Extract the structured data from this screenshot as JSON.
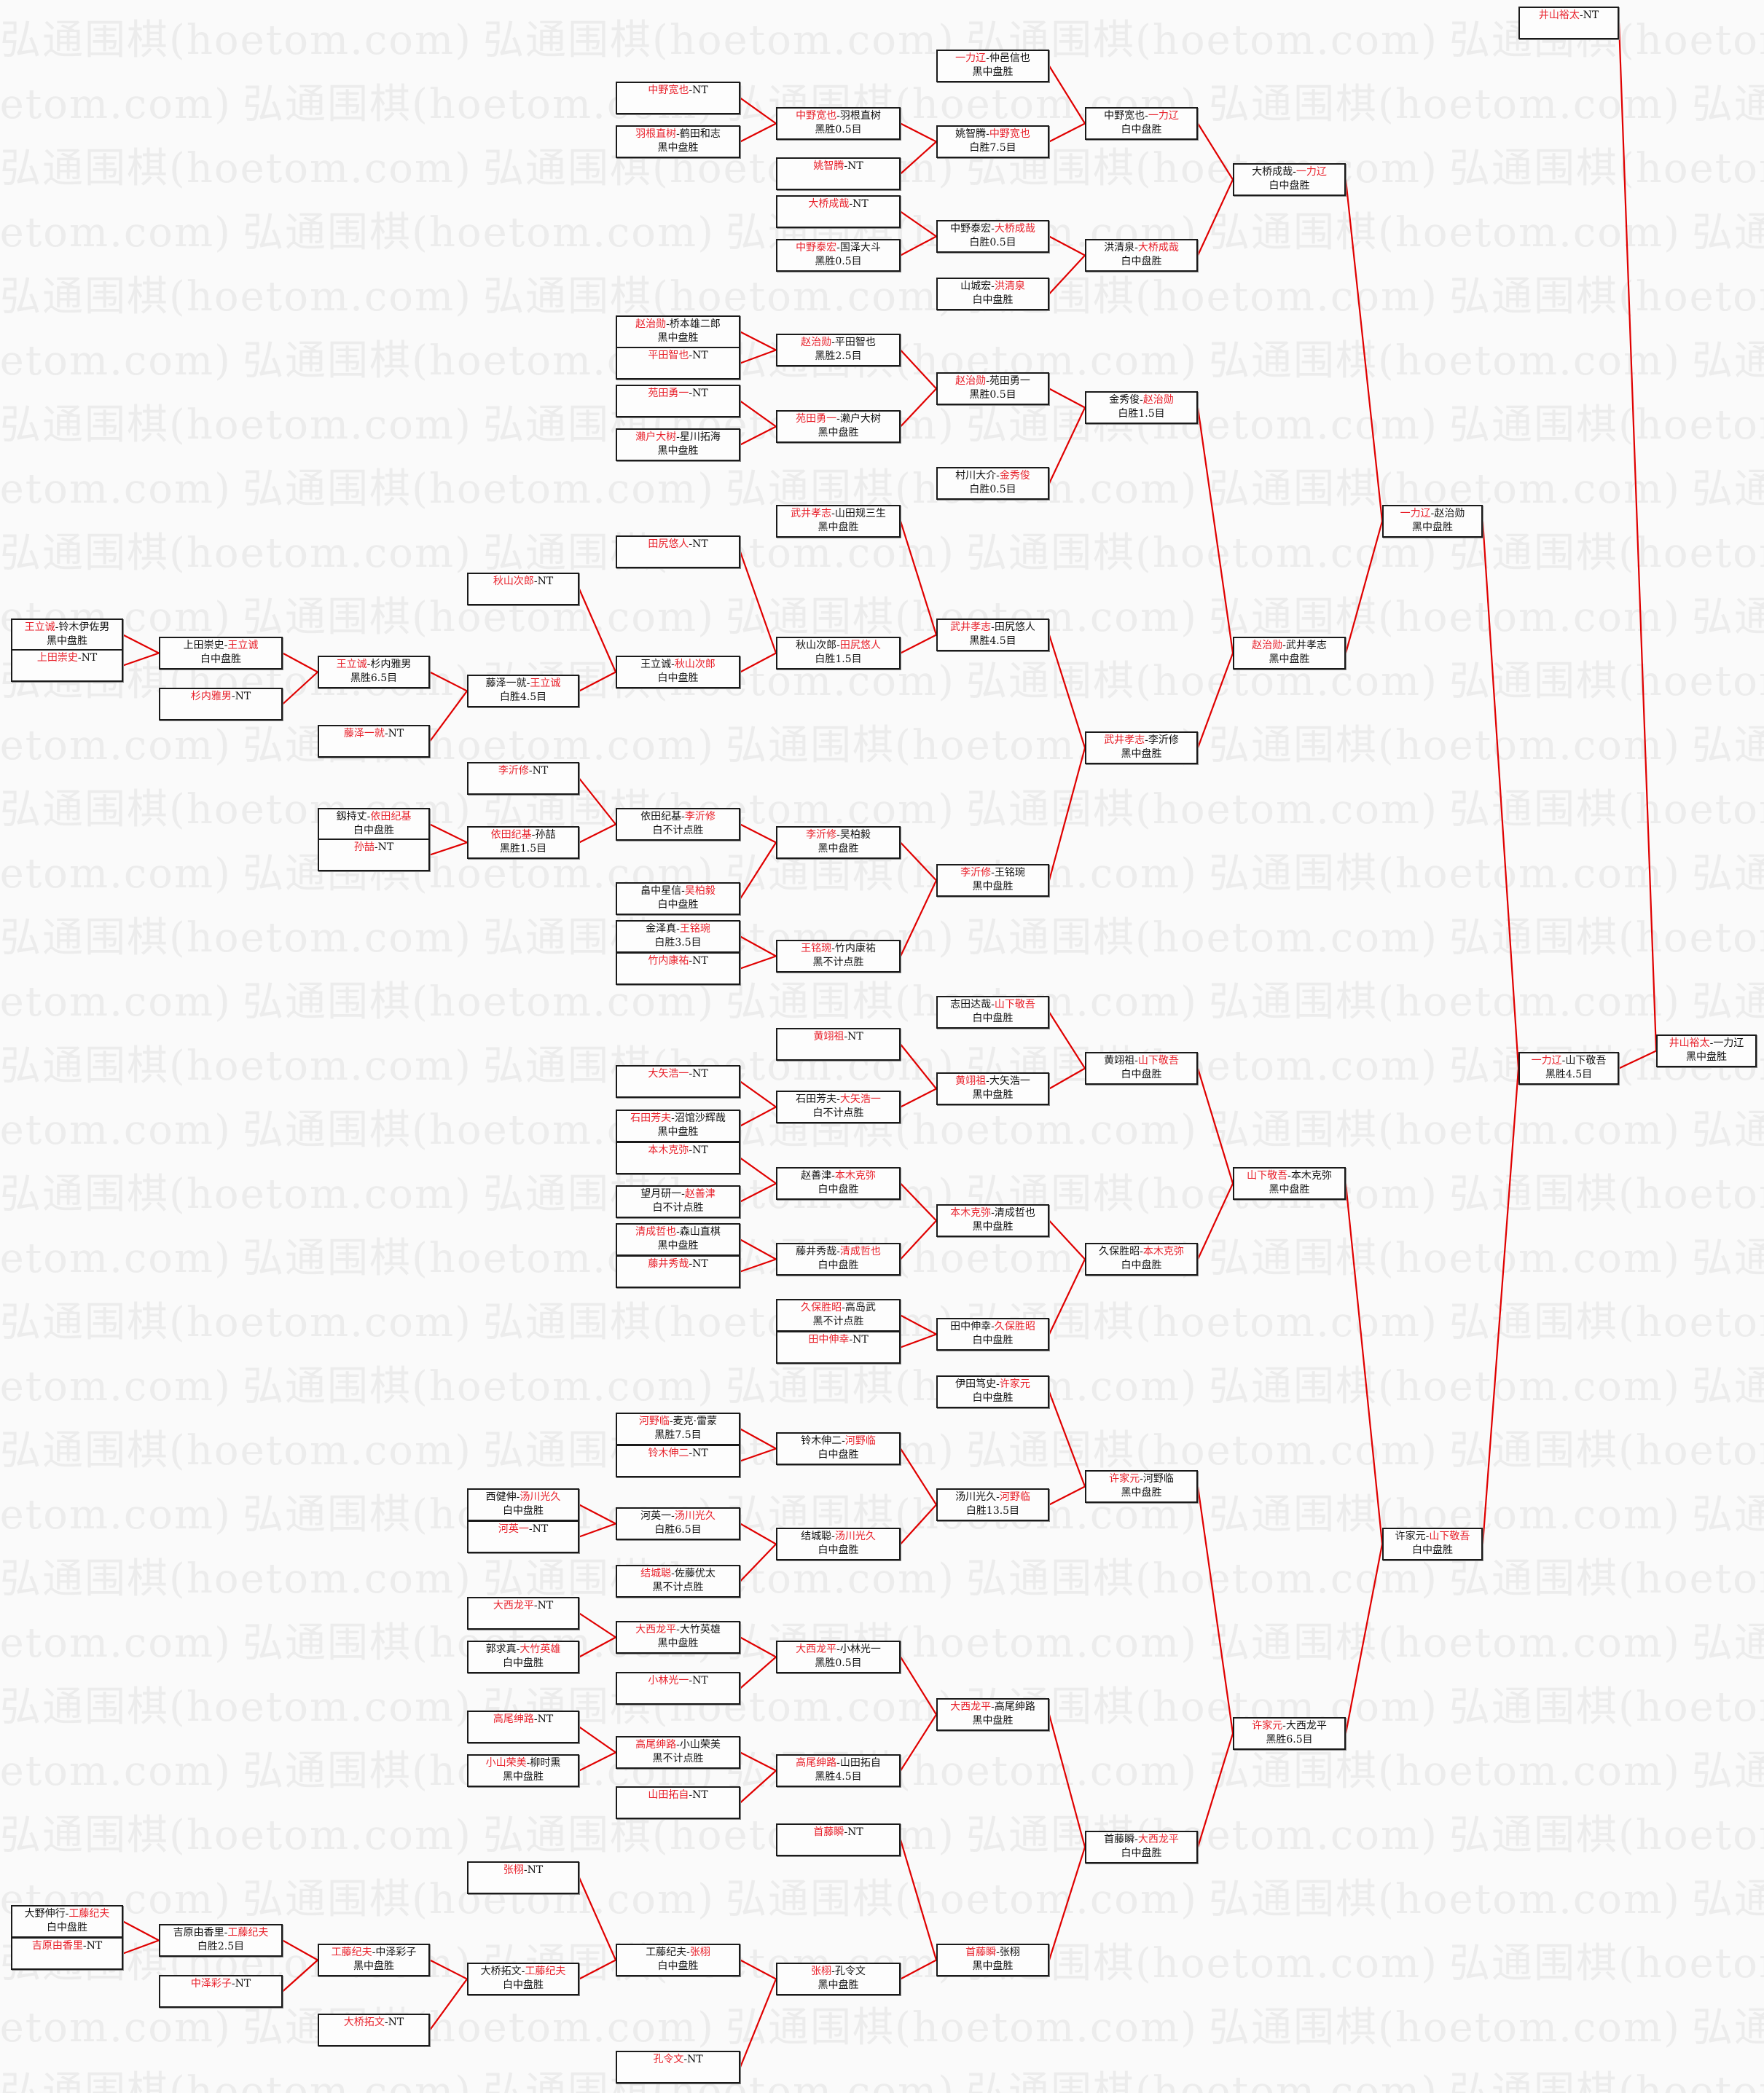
{
  "watermark": "弘通围棋(hoetom.com)",
  "colors": {
    "winner": "#e8202a",
    "connector": "#e00000",
    "box_border": "#1a1a1a"
  },
  "boxes": [
    {
      "id": "F",
      "a": "井山裕太",
      "b": "一力辽",
      "w": 0,
      "r": "黑中盘胜",
      "to": null
    },
    {
      "id": "N1",
      "a": "井山裕太",
      "b": "NT",
      "w": 0,
      "r": "",
      "to": "F"
    },
    {
      "id": "SF",
      "a": "一力辽",
      "b": "山下敬吾",
      "w": 0,
      "r": "黑胜4.5目",
      "to": "F"
    },
    {
      "id": "Q1",
      "a": "一力辽",
      "b": "赵治勋",
      "w": 0,
      "r": "黑中盘胜",
      "to": "SF"
    },
    {
      "id": "Q2",
      "a": "许家元",
      "b": "山下敬吾",
      "w": 1,
      "r": "白中盘胜",
      "to": "SF"
    },
    {
      "id": "R1",
      "a": "大桥成哉",
      "b": "一力辽",
      "w": 1,
      "r": "白中盘胜",
      "to": "Q1"
    },
    {
      "id": "R2",
      "a": "赵治勋",
      "b": "武井孝志",
      "w": 0,
      "r": "黑中盘胜",
      "to": "Q1"
    },
    {
      "id": "R3",
      "a": "山下敬吾",
      "b": "本木克弥",
      "w": 0,
      "r": "黑中盘胜",
      "to": "Q2"
    },
    {
      "id": "R4",
      "a": "许家元",
      "b": "大西龙平",
      "w": 0,
      "r": "黑胜6.5目",
      "to": "Q2"
    },
    {
      "id": "S1",
      "a": "中野宽也",
      "b": "一力辽",
      "w": 1,
      "r": "白中盘胜",
      "to": "R1"
    },
    {
      "id": "S2",
      "a": "洪清泉",
      "b": "大桥成哉",
      "w": 1,
      "r": "白中盘胜",
      "to": "R1"
    },
    {
      "id": "S3",
      "a": "金秀俊",
      "b": "赵治勋",
      "w": 1,
      "r": "白胜1.5目",
      "to": "R2"
    },
    {
      "id": "S4",
      "a": "武井孝志",
      "b": "李沂修",
      "w": 0,
      "r": "黑中盘胜",
      "to": "R2"
    },
    {
      "id": "S5",
      "a": "黄翊祖",
      "b": "山下敬吾",
      "w": 1,
      "r": "白中盘胜",
      "to": "R3"
    },
    {
      "id": "S6",
      "a": "久保胜昭",
      "b": "本木克弥",
      "w": 1,
      "r": "白中盘胜",
      "to": "R3"
    },
    {
      "id": "S7",
      "a": "许家元",
      "b": "河野临",
      "w": 0,
      "r": "黑中盘胜",
      "to": "R4"
    },
    {
      "id": "S8",
      "a": "首藤瞬",
      "b": "大西龙平",
      "w": 1,
      "r": "白中盘胜",
      "to": "R4"
    },
    {
      "id": "T1",
      "a": "一力辽",
      "b": "仲邑信也",
      "w": 0,
      "r": "黑中盘胜",
      "to": "S1"
    },
    {
      "id": "T2",
      "a": "姚智腾",
      "b": "中野宽也",
      "w": 1,
      "r": "白胜7.5目",
      "to": "S1"
    },
    {
      "id": "T3",
      "a": "中野泰宏",
      "b": "大桥成哉",
      "w": 1,
      "r": "白胜0.5目",
      "to": "S2"
    },
    {
      "id": "T4",
      "a": "山城宏",
      "b": "洪清泉",
      "w": 1,
      "r": "白中盘胜",
      "to": "S2"
    },
    {
      "id": "T5",
      "a": "赵治勋",
      "b": "苑田勇一",
      "w": 0,
      "r": "黑胜0.5目",
      "to": "S3"
    },
    {
      "id": "T6",
      "a": "村川大介",
      "b": "金秀俊",
      "w": 1,
      "r": "白胜0.5目",
      "to": "S3"
    },
    {
      "id": "T7",
      "a": "武井孝志",
      "b": "田尻悠人",
      "w": 0,
      "r": "黑胜4.5目",
      "to": "S4"
    },
    {
      "id": "T8",
      "a": "李沂修",
      "b": "王铭琬",
      "w": 0,
      "r": "黑中盘胜",
      "to": "S4"
    },
    {
      "id": "T9",
      "a": "志田达哉",
      "b": "山下敬吾",
      "w": 1,
      "r": "白中盘胜",
      "to": "S5"
    },
    {
      "id": "T10",
      "a": "黄翊祖",
      "b": "大矢浩一",
      "w": 0,
      "r": "黑中盘胜",
      "to": "S5"
    },
    {
      "id": "T11",
      "a": "本木克弥",
      "b": "清成哲也",
      "w": 0,
      "r": "黑中盘胜",
      "to": "S6"
    },
    {
      "id": "T12",
      "a": "田中伸幸",
      "b": "久保胜昭",
      "w": 1,
      "r": "白中盘胜",
      "to": "S6"
    },
    {
      "id": "T13",
      "a": "伊田笃史",
      "b": "许家元",
      "w": 1,
      "r": "白中盘胜",
      "to": "S7"
    },
    {
      "id": "T14",
      "a": "汤川光久",
      "b": "河野临",
      "w": 1,
      "r": "白胜13.5目",
      "to": "S7"
    },
    {
      "id": "T15",
      "a": "大西龙平",
      "b": "高尾绅路",
      "w": 0,
      "r": "黑中盘胜",
      "to": "S8"
    },
    {
      "id": "T16",
      "a": "首藤瞬",
      "b": "张栩",
      "w": 0,
      "r": "黑中盘胜",
      "to": "S8"
    },
    {
      "id": "U1",
      "a": "中野宽也",
      "b": "羽根直树",
      "w": 0,
      "r": "黑胜0.5目",
      "to": "T2"
    },
    {
      "id": "U2",
      "a": "姚智腾",
      "b": "NT",
      "w": 0,
      "r": "",
      "to": "T2"
    },
    {
      "id": "U3",
      "a": "大桥成哉",
      "b": "NT",
      "w": 0,
      "r": "",
      "to": "T3"
    },
    {
      "id": "U4",
      "a": "中野泰宏",
      "b": "国泽大斗",
      "w": 0,
      "r": "黑胜0.5目",
      "to": "T3"
    },
    {
      "id": "U5",
      "a": "赵治勋",
      "b": "平田智也",
      "w": 0,
      "r": "黑胜2.5目",
      "to": "T5"
    },
    {
      "id": "U6",
      "a": "苑田勇一",
      "b": "濑户大树",
      "w": 0,
      "r": "黑中盘胜",
      "to": "T5"
    },
    {
      "id": "U7",
      "a": "武井孝志",
      "b": "山田规三生",
      "w": 0,
      "r": "黑中盘胜",
      "to": "T7"
    },
    {
      "id": "U8",
      "a": "秋山次郎",
      "b": "田尻悠人",
      "w": 1,
      "r": "白胜1.5目",
      "to": "T7"
    },
    {
      "id": "U9",
      "a": "李沂修",
      "b": "吴柏毅",
      "w": 0,
      "r": "黑中盘胜",
      "to": "T8"
    },
    {
      "id": "U10",
      "a": "王铭琬",
      "b": "竹内康祐",
      "w": 0,
      "r": "黑不计点胜",
      "to": "T8"
    },
    {
      "id": "U11",
      "a": "黄翊祖",
      "b": "NT",
      "w": 0,
      "r": "",
      "to": "T10"
    },
    {
      "id": "U12",
      "a": "石田芳夫",
      "b": "大矢浩一",
      "w": 1,
      "r": "白不计点胜",
      "to": "T10"
    },
    {
      "id": "U13",
      "a": "赵善津",
      "b": "本木克弥",
      "w": 1,
      "r": "白中盘胜",
      "to": "T11"
    },
    {
      "id": "U14",
      "a": "藤井秀哉",
      "b": "清成哲也",
      "w": 1,
      "r": "白中盘胜",
      "to": "T11"
    },
    {
      "id": "U15",
      "a": "久保胜昭",
      "b": "高岛武",
      "w": 0,
      "r": "黑不计点胜",
      "to": "T12"
    },
    {
      "id": "U16",
      "a": "田中伸幸",
      "b": "NT",
      "w": 0,
      "r": "",
      "to": "T12"
    },
    {
      "id": "U17",
      "a": "铃木伸二",
      "b": "河野临",
      "w": 1,
      "r": "白中盘胜",
      "to": "T14"
    },
    {
      "id": "U18",
      "a": "结城聪",
      "b": "汤川光久",
      "w": 1,
      "r": "白中盘胜",
      "to": "T14"
    },
    {
      "id": "U19",
      "a": "大西龙平",
      "b": "小林光一",
      "w": 0,
      "r": "黑胜0.5目",
      "to": "T15"
    },
    {
      "id": "U20",
      "a": "高尾绅路",
      "b": "山田拓自",
      "w": 0,
      "r": "黑胜4.5目",
      "to": "T15"
    },
    {
      "id": "U21",
      "a": "首藤瞬",
      "b": "NT",
      "w": 0,
      "r": "",
      "to": "T16"
    },
    {
      "id": "U22",
      "a": "张栩",
      "b": "孔令文",
      "w": 0,
      "r": "黑中盘胜",
      "to": "T16"
    },
    {
      "id": "V1",
      "a": "中野宽也",
      "b": "NT",
      "w": 0,
      "r": "",
      "to": "U1"
    },
    {
      "id": "V2",
      "a": "羽根直树",
      "b": "鹤田和志",
      "w": 0,
      "r": "黑中盘胜",
      "to": "U1"
    },
    {
      "id": "V3",
      "a": "赵治勋",
      "b": "桥本雄二郎",
      "w": 0,
      "r": "黑中盘胜",
      "to": "U5"
    },
    {
      "id": "V4",
      "a": "平田智也",
      "b": "NT",
      "w": 0,
      "r": "",
      "to": "U5"
    },
    {
      "id": "V5",
      "a": "苑田勇一",
      "b": "NT",
      "w": 0,
      "r": "",
      "to": "U6"
    },
    {
      "id": "V6",
      "a": "濑户大树",
      "b": "星川拓海",
      "w": 0,
      "r": "黑中盘胜",
      "to": "U6"
    },
    {
      "id": "V7",
      "a": "田尻悠人",
      "b": "NT",
      "w": 0,
      "r": "",
      "to": "U8"
    },
    {
      "id": "V8",
      "a": "王立诚",
      "b": "秋山次郎",
      "w": 1,
      "r": "白中盘胜",
      "to": "U8"
    },
    {
      "id": "V9",
      "a": "依田纪基",
      "b": "李沂修",
      "w": 1,
      "r": "白不计点胜",
      "to": "U9"
    },
    {
      "id": "V10",
      "a": "畠中星信",
      "b": "吴柏毅",
      "w": 1,
      "r": "白中盘胜",
      "to": "U9"
    },
    {
      "id": "V11",
      "a": "金泽真",
      "b": "王铭琬",
      "w": 1,
      "r": "白胜3.5目",
      "to": "U10"
    },
    {
      "id": "V12",
      "a": "竹内康祐",
      "b": "NT",
      "w": 0,
      "r": "",
      "to": "U10"
    },
    {
      "id": "V13",
      "a": "大矢浩一",
      "b": "NT",
      "w": 0,
      "r": "",
      "to": "U12"
    },
    {
      "id": "V14",
      "a": "石田芳夫",
      "b": "沼馆沙辉哉",
      "w": 0,
      "r": "黑中盘胜",
      "to": "U12"
    },
    {
      "id": "V15",
      "a": "本木克弥",
      "b": "NT",
      "w": 0,
      "r": "",
      "to": "U13"
    },
    {
      "id": "V16",
      "a": "望月研一",
      "b": "赵善津",
      "w": 1,
      "r": "白不计点胜",
      "to": "U13"
    },
    {
      "id": "V17",
      "a": "清成哲也",
      "b": "森山直棋",
      "w": 0,
      "r": "黑中盘胜",
      "to": "U14"
    },
    {
      "id": "V18",
      "a": "藤井秀哉",
      "b": "NT",
      "w": 0,
      "r": "",
      "to": "U14"
    },
    {
      "id": "V19",
      "a": "河野临",
      "b": "麦克·雷蒙",
      "w": 0,
      "r": "黑胜7.5目",
      "to": "U17"
    },
    {
      "id": "V20",
      "a": "铃木伸二",
      "b": "NT",
      "w": 0,
      "r": "",
      "to": "U17"
    },
    {
      "id": "V21",
      "a": "河英一",
      "b": "汤川光久",
      "w": 1,
      "r": "白胜6.5目",
      "to": "U18"
    },
    {
      "id": "V22",
      "a": "结城聪",
      "b": "佐藤优太",
      "w": 0,
      "r": "黑不计点胜",
      "to": "U18"
    },
    {
      "id": "V23",
      "a": "大西龙平",
      "b": "大竹英雄",
      "w": 0,
      "r": "黑中盘胜",
      "to": "U19"
    },
    {
      "id": "V24",
      "a": "小林光一",
      "b": "NT",
      "w": 0,
      "r": "",
      "to": "U19"
    },
    {
      "id": "V25",
      "a": "高尾绅路",
      "b": "小山荣美",
      "w": 0,
      "r": "黑不计点胜",
      "to": "U20"
    },
    {
      "id": "V26",
      "a": "山田拓自",
      "b": "NT",
      "w": 0,
      "r": "",
      "to": "U20"
    },
    {
      "id": "V27",
      "a": "工藤纪夫",
      "b": "张栩",
      "w": 1,
      "r": "白中盘胜",
      "to": "U22"
    },
    {
      "id": "V28",
      "a": "孔令文",
      "b": "NT",
      "w": 0,
      "r": "",
      "to": "U22"
    },
    {
      "id": "W1",
      "a": "秋山次郎",
      "b": "NT",
      "w": 0,
      "r": "",
      "to": "V8"
    },
    {
      "id": "W2",
      "a": "藤泽一就",
      "b": "王立诚",
      "w": 1,
      "r": "白胜4.5目",
      "to": "V8"
    },
    {
      "id": "W3",
      "a": "李沂修",
      "b": "NT",
      "w": 0,
      "r": "",
      "to": "V9"
    },
    {
      "id": "W4",
      "a": "依田纪基",
      "b": "孙喆",
      "w": 0,
      "r": "黑胜1.5目",
      "to": "V9"
    },
    {
      "id": "W5",
      "a": "西健伸",
      "b": "汤川光久",
      "w": 1,
      "r": "白中盘胜",
      "to": "V21"
    },
    {
      "id": "W6",
      "a": "河英一",
      "b": "NT",
      "w": 0,
      "r": "",
      "to": "V21"
    },
    {
      "id": "W7",
      "a": "大西龙平",
      "b": "NT",
      "w": 0,
      "r": "",
      "to": "V23"
    },
    {
      "id": "W8",
      "a": "郭求真",
      "b": "大竹英雄",
      "w": 1,
      "r": "白中盘胜",
      "to": "V23"
    },
    {
      "id": "W9",
      "a": "高尾绅路",
      "b": "NT",
      "w": 0,
      "r": "",
      "to": "V25"
    },
    {
      "id": "W10",
      "a": "小山荣美",
      "b": "柳时熏",
      "w": 0,
      "r": "黑中盘胜",
      "to": "V25"
    },
    {
      "id": "W11",
      "a": "张栩",
      "b": "NT",
      "w": 0,
      "r": "",
      "to": "V27"
    },
    {
      "id": "W12",
      "a": "大桥拓文",
      "b": "工藤纪夫",
      "w": 1,
      "r": "白中盘胜",
      "to": "V27"
    },
    {
      "id": "X1",
      "a": "王立诚",
      "b": "杉内雅男",
      "w": 0,
      "r": "黑胜6.5目",
      "to": "W2"
    },
    {
      "id": "X2",
      "a": "藤泽一就",
      "b": "NT",
      "w": 0,
      "r": "",
      "to": "W2"
    },
    {
      "id": "X3",
      "a": "釼持丈",
      "b": "依田纪基",
      "w": 1,
      "r": "白中盘胜",
      "to": "W4"
    },
    {
      "id": "X4",
      "a": "孙喆",
      "b": "NT",
      "w": 0,
      "r": "",
      "to": "W4"
    },
    {
      "id": "X5",
      "a": "工藤纪夫",
      "b": "中泽彩子",
      "w": 0,
      "r": "黑中盘胜",
      "to": "W12"
    },
    {
      "id": "X6",
      "a": "大桥拓文",
      "b": "NT",
      "w": 0,
      "r": "",
      "to": "W12"
    },
    {
      "id": "Y1",
      "a": "上田崇史",
      "b": "王立诚",
      "w": 1,
      "r": "白中盘胜",
      "to": "X1"
    },
    {
      "id": "Y2",
      "a": "杉内雅男",
      "b": "NT",
      "w": 0,
      "r": "",
      "to": "X1"
    },
    {
      "id": "Y3",
      "a": "吉原由香里",
      "b": "工藤纪夫",
      "w": 1,
      "r": "白胜2.5目",
      "to": "X5"
    },
    {
      "id": "Y4",
      "a": "中泽彩子",
      "b": "NT",
      "w": 0,
      "r": "",
      "to": "X5"
    },
    {
      "id": "Z1",
      "a": "王立诚",
      "b": "铃木伊佐男",
      "w": 0,
      "r": "黑中盘胜",
      "to": "Y1"
    },
    {
      "id": "Z2",
      "a": "上田崇史",
      "b": "NT",
      "w": 0,
      "r": "",
      "to": "Y1"
    },
    {
      "id": "Z3",
      "a": "大野伸行",
      "b": "工藤纪夫",
      "w": 1,
      "r": "白中盘胜",
      "to": "Y3"
    },
    {
      "id": "Z4",
      "a": "吉原由香里",
      "b": "NT",
      "w": 0,
      "r": "",
      "to": "Y3"
    }
  ]
}
